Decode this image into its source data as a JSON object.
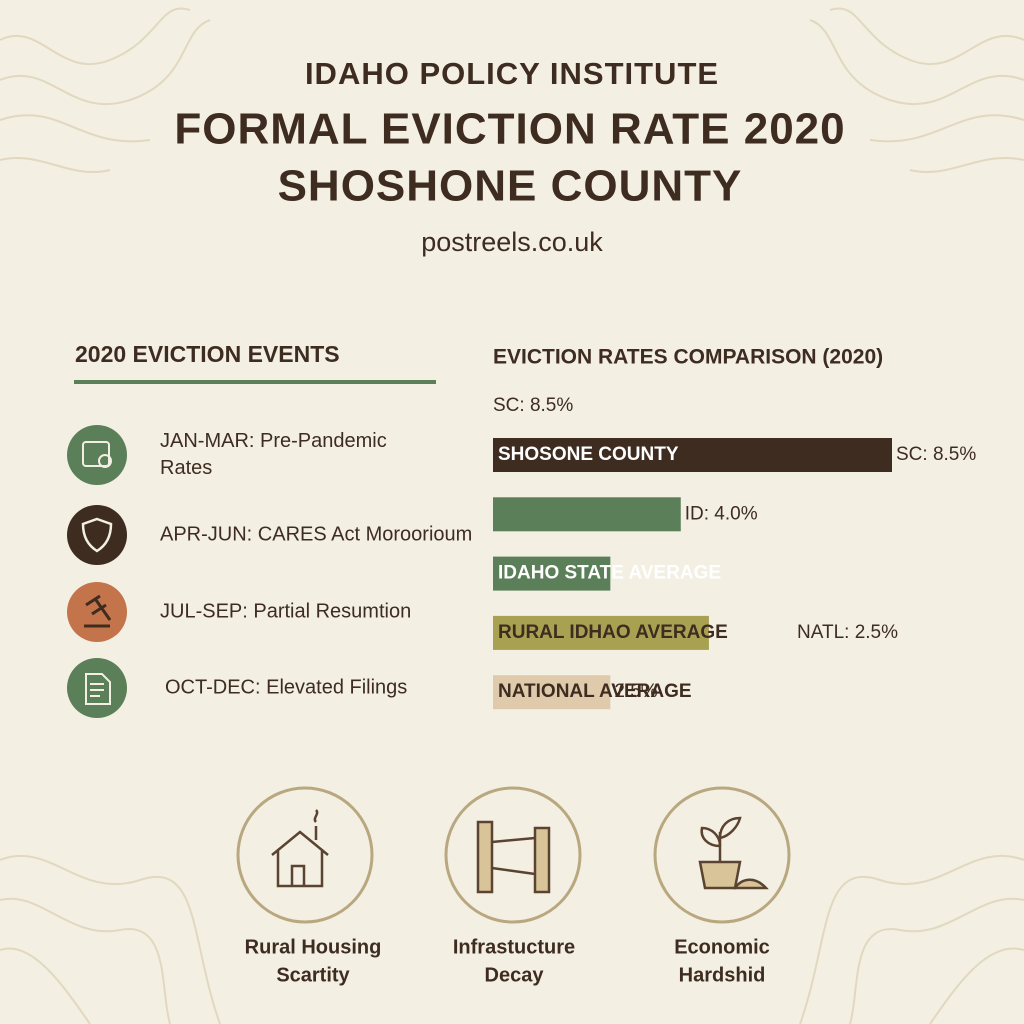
{
  "header": {
    "org": "IDAHO POLICY INSTITUTE",
    "title_lines": [
      "FORMAL EVICTION RATE 2020",
      "SHOSHONE COUNTY"
    ],
    "url": "postreels.co.uk"
  },
  "events": {
    "title": "2020 EVICTION EVENTS",
    "items": [
      {
        "lines": [
          "JAN-MAR: Pre-Pandemic",
          "Rates"
        ]
      },
      {
        "lines": [
          "APR-JUN: CARES Act Moroorioum"
        ]
      },
      {
        "lines": [
          "JUL-SEP: Partial Resumtion"
        ]
      },
      {
        "lines": [
          "OCT-DEC: Elevated Filings"
        ]
      }
    ]
  },
  "chart_data": {
    "type": "bar",
    "orientation": "horizontal",
    "title": "EVICTION RATES COMPARISON (2020)",
    "categories": [
      "SHOSONE COUNTY",
      null,
      "IDAHO STATE AVERAGE",
      "RURAL IDHAO AVERAGE",
      "NATIONAL AVERAGE"
    ],
    "values": [
      8.5,
      4.0,
      2.5,
      4.6,
      2.5
    ],
    "value_labels": [
      "SC: 8.5%",
      "ID: 4.0%",
      null,
      null,
      "2.5%"
    ],
    "colors": [
      "#3e2c20",
      "#5b7f58",
      "#5b7f58",
      "#a9a152",
      "#dfcbab"
    ],
    "label_colors": [
      "#ffffff",
      "#ffffff",
      "#ffffff",
      "#3e2c20",
      "#3e2c20"
    ],
    "xlim": [
      0,
      8.5
    ],
    "annotations": [
      "SC: 8.5%",
      "NATL: 2.5%"
    ]
  },
  "factors": [
    {
      "lines": [
        "Rural Housing",
        "Scartity"
      ]
    },
    {
      "lines": [
        "Infrastucture",
        "Decay"
      ]
    },
    {
      "lines": [
        "Economic",
        "Hardshid"
      ]
    }
  ]
}
